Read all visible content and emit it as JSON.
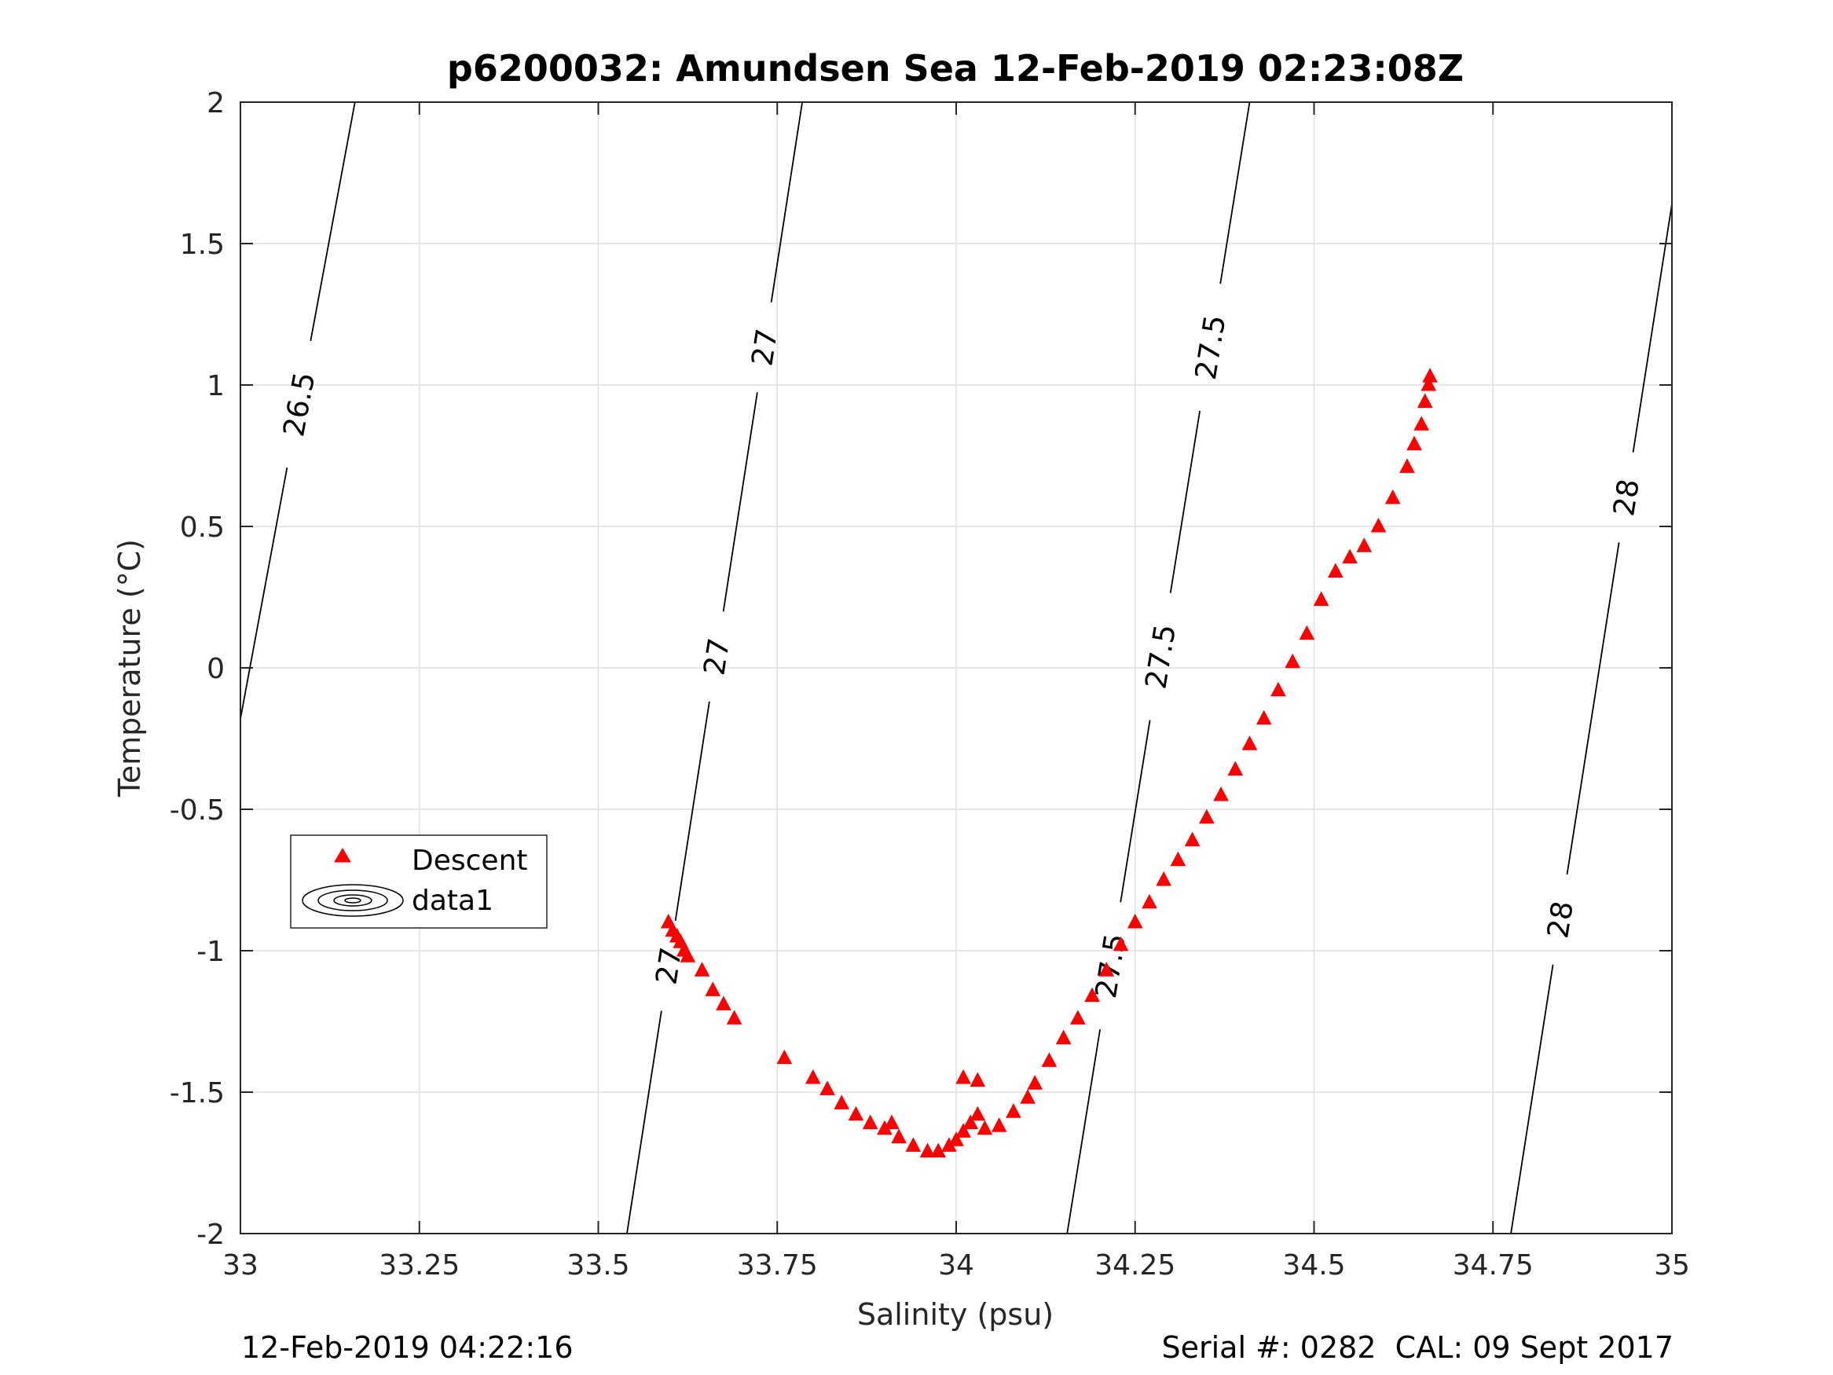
{
  "chart_data": {
    "type": "scatter",
    "title": "p6200032: Amundsen Sea 12-Feb-2019 02:23:08Z",
    "xlabel": "Salinity (psu)",
    "ylabel": "Temperature (°C)",
    "xlim": [
      33,
      35
    ],
    "ylim": [
      -2,
      2
    ],
    "x_ticks": [
      33,
      33.25,
      33.5,
      33.75,
      34,
      34.25,
      34.5,
      34.75,
      35
    ],
    "x_tick_labels": [
      "33",
      "33.25",
      "33.5",
      "33.75",
      "34",
      "34.25",
      "34.5",
      "34.75",
      "35"
    ],
    "y_ticks": [
      -2,
      -1.5,
      -1,
      -0.5,
      0,
      0.5,
      1,
      1.5,
      2
    ],
    "y_tick_labels": [
      "-2",
      "-1.5",
      "-1",
      "-0.5",
      "0",
      "0.5",
      "1",
      "1.5",
      "2"
    ],
    "grid": true,
    "legend_position": "lower-left",
    "legend": [
      "Descent",
      "data1"
    ],
    "series": [
      {
        "name": "Descent",
        "marker": "triangle",
        "color": "#ff0000",
        "points": [
          [
            33.598,
            -0.9
          ],
          [
            33.604,
            -0.93
          ],
          [
            33.61,
            -0.95
          ],
          [
            33.615,
            -0.97
          ],
          [
            33.62,
            -1.0
          ],
          [
            33.625,
            -1.02
          ],
          [
            33.645,
            -1.07
          ],
          [
            33.66,
            -1.14
          ],
          [
            33.675,
            -1.19
          ],
          [
            33.69,
            -1.24
          ],
          [
            33.76,
            -1.38
          ],
          [
            33.8,
            -1.45
          ],
          [
            33.82,
            -1.49
          ],
          [
            33.84,
            -1.54
          ],
          [
            33.86,
            -1.58
          ],
          [
            33.88,
            -1.61
          ],
          [
            33.9,
            -1.63
          ],
          [
            33.91,
            -1.61
          ],
          [
            33.92,
            -1.66
          ],
          [
            33.94,
            -1.69
          ],
          [
            33.96,
            -1.71
          ],
          [
            33.975,
            -1.71
          ],
          [
            33.99,
            -1.69
          ],
          [
            34.0,
            -1.67
          ],
          [
            34.01,
            -1.64
          ],
          [
            34.02,
            -1.61
          ],
          [
            34.03,
            -1.58
          ],
          [
            34.01,
            -1.45
          ],
          [
            34.03,
            -1.46
          ],
          [
            34.04,
            -1.63
          ],
          [
            34.06,
            -1.62
          ],
          [
            34.08,
            -1.57
          ],
          [
            34.1,
            -1.52
          ],
          [
            34.11,
            -1.47
          ],
          [
            34.13,
            -1.39
          ],
          [
            34.15,
            -1.31
          ],
          [
            34.17,
            -1.24
          ],
          [
            34.19,
            -1.16
          ],
          [
            34.21,
            -1.07
          ],
          [
            34.23,
            -0.98
          ],
          [
            34.25,
            -0.9
          ],
          [
            34.27,
            -0.83
          ],
          [
            34.29,
            -0.75
          ],
          [
            34.31,
            -0.68
          ],
          [
            34.33,
            -0.61
          ],
          [
            34.35,
            -0.53
          ],
          [
            34.37,
            -0.45
          ],
          [
            34.39,
            -0.36
          ],
          [
            34.41,
            -0.27
          ],
          [
            34.43,
            -0.18
          ],
          [
            34.45,
            -0.08
          ],
          [
            34.47,
            0.02
          ],
          [
            34.49,
            0.12
          ],
          [
            34.51,
            0.24
          ],
          [
            34.53,
            0.34
          ],
          [
            34.55,
            0.39
          ],
          [
            34.57,
            0.43
          ],
          [
            34.59,
            0.5
          ],
          [
            34.61,
            0.6
          ],
          [
            34.63,
            0.71
          ],
          [
            34.64,
            0.79
          ],
          [
            34.65,
            0.86
          ],
          [
            34.655,
            0.94
          ],
          [
            34.66,
            1.0
          ],
          [
            34.662,
            1.03
          ]
        ]
      }
    ],
    "contours": [
      {
        "level": "26.5",
        "labels": [
          "26.5"
        ],
        "points": [
          [
            33.0,
            -0.18
          ],
          [
            33.16,
            2.0
          ]
        ]
      },
      {
        "level": "27",
        "labels": [
          "27",
          "27",
          "27"
        ],
        "points": [
          [
            33.54,
            -2.0
          ],
          [
            33.785,
            2.0
          ]
        ]
      },
      {
        "level": "27.5",
        "labels": [
          "27.5",
          "27.5",
          "27.5"
        ],
        "points": [
          [
            34.155,
            -2.0
          ],
          [
            34.41,
            2.0
          ]
        ]
      },
      {
        "level": "28",
        "labels": [
          "28",
          "28"
        ],
        "points": [
          [
            34.775,
            -2.0
          ],
          [
            35.0,
            1.64
          ]
        ]
      }
    ]
  },
  "footer": {
    "timestamp": "12-Feb-2019 04:22:16",
    "serial": "Serial #: 0282  CAL: 09 Sept 2017"
  }
}
